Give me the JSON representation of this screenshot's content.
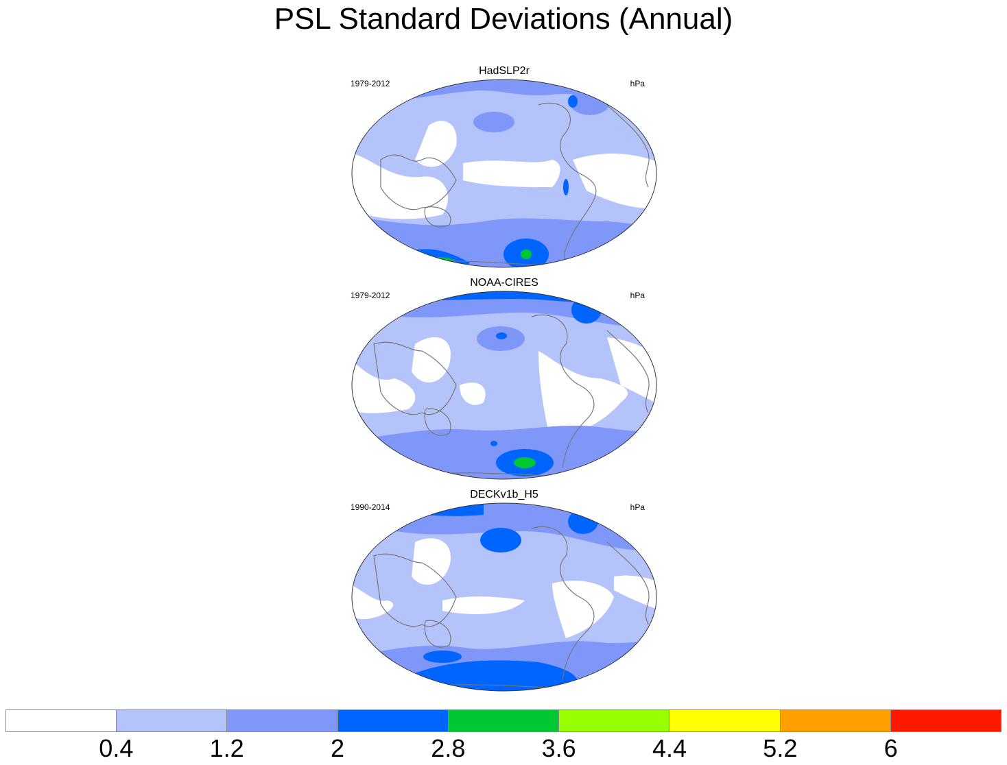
{
  "title": "PSL Standard Deviations (Annual)",
  "panels": [
    {
      "name": "HadSLP2r",
      "period": "1979-2012",
      "units": "hPa"
    },
    {
      "name": "NOAA-CIRES",
      "period": "1979-2012",
      "units": "hPa"
    },
    {
      "name": "DECKv1b_H5",
      "period": "1990-2014",
      "units": "hPa"
    }
  ],
  "colorbar": {
    "colors": [
      "#ffffff",
      "#b4c4fa",
      "#8097fa",
      "#0064ff",
      "#00c832",
      "#96ff00",
      "#ffff00",
      "#ffa000",
      "#ff1900"
    ],
    "labels": [
      "0.4",
      "1.2",
      "2",
      "2.8",
      "3.6",
      "4.4",
      "5.2",
      "6"
    ]
  }
}
